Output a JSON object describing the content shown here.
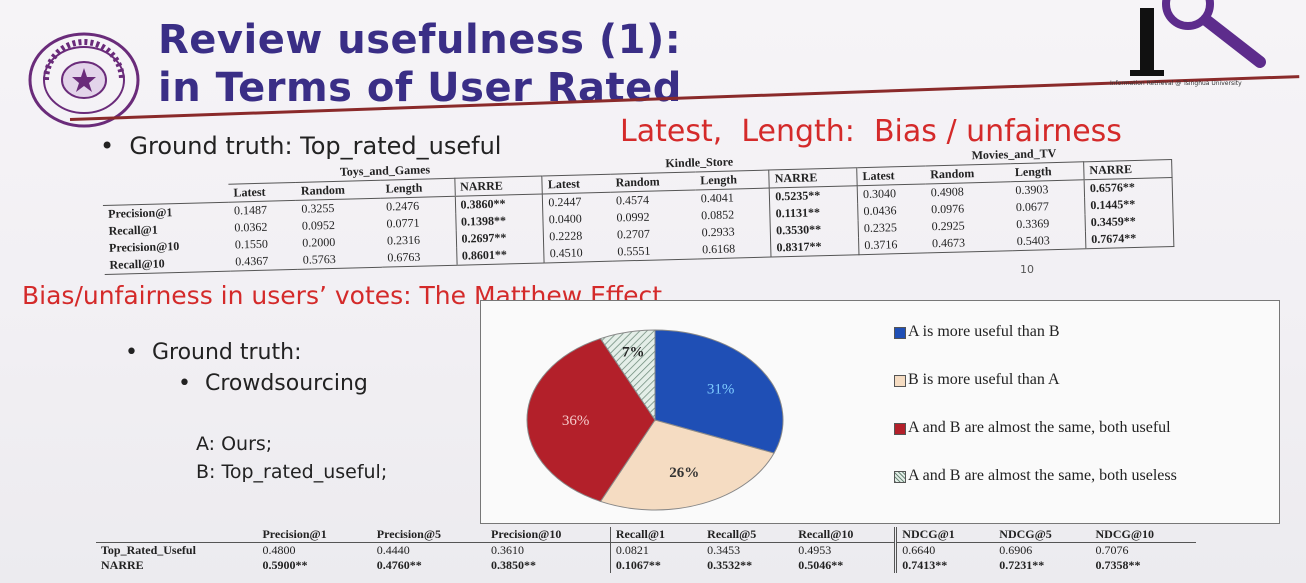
{
  "slide": {
    "title_line1": "Review usefulness (1):",
    "title_line2": "in Terms of User Rated",
    "logo_caption": "Information Retrieval @ Tsinghua University",
    "seal_text": "TSINGHUA UNIVERSITY 1911",
    "bullet_ground_truth": "Ground truth: Top_rated_useful",
    "red_note": "Latest,  Length:  Bias / unfairness",
    "matthew": "Bias/unfairness in users’ votes: The Matthew Effect",
    "gt2": "Ground truth:",
    "crowd": "Crowdsourcing",
    "a_label": "A: Ours;",
    "b_label": "B: Top_rated_useful;",
    "page_number": "10"
  },
  "table1": {
    "groups": [
      "Toys_and_Games",
      "Kindle_Store",
      "Movies_and_TV"
    ],
    "columns": [
      "Latest",
      "Random",
      "Length",
      "NARRE"
    ],
    "rows": [
      {
        "label": "Precision@1",
        "values": [
          "0.1487",
          "0.3255",
          "0.2476",
          "0.3860**",
          "0.2447",
          "0.4574",
          "0.4041",
          "0.5235**",
          "0.3040",
          "0.4908",
          "0.3903",
          "0.6576**"
        ]
      },
      {
        "label": "Recall@1",
        "values": [
          "0.0362",
          "0.0952",
          "0.0771",
          "0.1398**",
          "0.0400",
          "0.0992",
          "0.0852",
          "0.1131**",
          "0.0436",
          "0.0976",
          "0.0677",
          "0.1445**"
        ]
      },
      {
        "label": "Precision@10",
        "values": [
          "0.1550",
          "0.2000",
          "0.2316",
          "0.2697**",
          "0.2228",
          "0.2707",
          "0.2933",
          "0.3530**",
          "0.2325",
          "0.2925",
          "0.3369",
          "0.3459**"
        ]
      },
      {
        "label": "Recall@10",
        "values": [
          "0.4367",
          "0.5763",
          "0.6763",
          "0.8601**",
          "0.4510",
          "0.5551",
          "0.6168",
          "0.8317**",
          "0.3716",
          "0.4673",
          "0.5403",
          "0.7674**"
        ]
      }
    ]
  },
  "chart_data": {
    "type": "pie",
    "labels": [
      "A is more useful than B",
      "B is more useful than A",
      "A and B are almost the same, both useful",
      "A and B are almost the same, both useless"
    ],
    "values": [
      31,
      26,
      36,
      7
    ],
    "value_labels": [
      "31%",
      "26%",
      "36%",
      "7%"
    ],
    "colors": [
      "#1f4fb5",
      "#f5dcc2",
      "#b3202a",
      "#d6e4dc"
    ]
  },
  "table2": {
    "columns": [
      "Precision@1",
      "Precision@5",
      "Precision@10",
      "Recall@1",
      "Recall@5",
      "Recall@10",
      "NDCG@1",
      "NDCG@5",
      "NDCG@10"
    ],
    "rows": [
      {
        "label": "Top_Rated_Useful",
        "values": [
          "0.4800",
          "0.4440",
          "0.3610",
          "0.0821",
          "0.3453",
          "0.4953",
          "0.6640",
          "0.6906",
          "0.7076"
        ]
      },
      {
        "label": "NARRE",
        "values": [
          "0.5900**",
          "0.4760**",
          "0.3850**",
          "0.1067**",
          "0.3532**",
          "0.5046**",
          "0.7413**",
          "0.7231**",
          "0.7358**"
        ]
      }
    ]
  }
}
